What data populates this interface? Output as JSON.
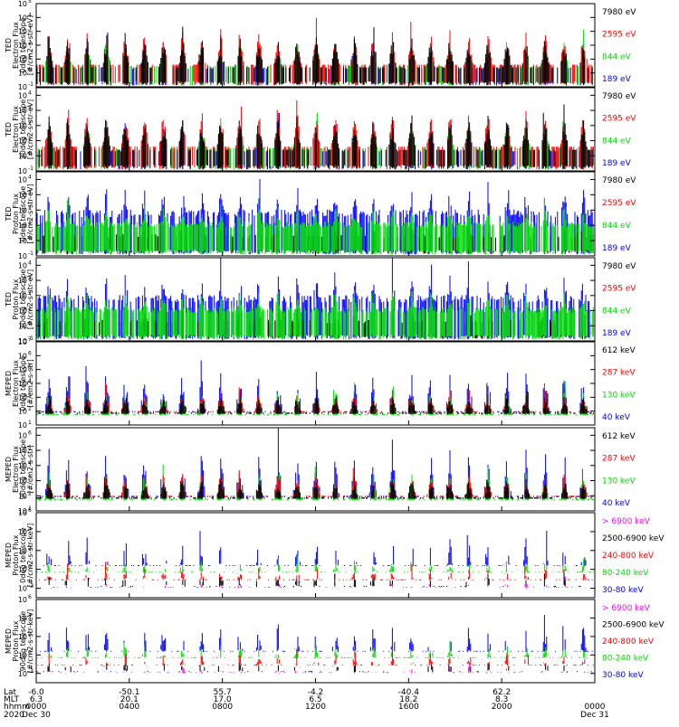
{
  "chart_data": {
    "type": "stacked-timeseries",
    "x_range_hours": [
      0,
      24
    ],
    "panels": [
      {
        "kind": "electron",
        "ylabel": [
          "TED",
          "Electron Flux",
          "0deg telescope",
          "[#/cm2-s-str-eV]"
        ],
        "ytick_exps": [
          -1,
          0,
          1,
          2,
          3,
          4,
          5
        ],
        "ylog_range": [
          -1,
          5
        ],
        "legend": [
          {
            "text": "7980 eV",
            "color": "#000000"
          },
          {
            "text": "2595 eV",
            "color": "#ff0000"
          },
          {
            "text": "844 eV",
            "color": "#00dd00"
          },
          {
            "text": "189 eV",
            "color": "#0000ff"
          }
        ]
      },
      {
        "kind": "electron",
        "ylabel": [
          "TED",
          "Electron Flux",
          "30deg telescope",
          "[#/cm2-s-str-eV]"
        ],
        "ytick_exps": [
          -1,
          0,
          1,
          2,
          3,
          4
        ],
        "ylog_range": [
          -1,
          4.5
        ],
        "legend": [
          {
            "text": "7980 eV",
            "color": "#000000"
          },
          {
            "text": "2595 eV",
            "color": "#ff0000"
          },
          {
            "text": "844 eV",
            "color": "#00dd00"
          },
          {
            "text": "189 eV",
            "color": "#0000ff"
          }
        ]
      },
      {
        "kind": "tedproton",
        "ylabel": [
          "TED",
          "Proton Flux",
          "0deg telescope",
          "[#/cm2-s-str-eV]"
        ],
        "ytick_exps": [
          -1,
          0,
          1,
          2,
          3,
          4
        ],
        "ylog_range": [
          -1,
          4.5
        ],
        "legend": [
          {
            "text": "7980 eV",
            "color": "#000000"
          },
          {
            "text": "2595 eV",
            "color": "#ff0000"
          },
          {
            "text": "844 eV",
            "color": "#00dd00"
          },
          {
            "text": "189 eV",
            "color": "#0000ff"
          }
        ]
      },
      {
        "kind": "tedproton",
        "ylabel": [
          "TED",
          "Proton Flux",
          "30deg telescope",
          "[#/cm2-s-str-eV]"
        ],
        "ytick_exps": [
          -1,
          0,
          1,
          2,
          3,
          4
        ],
        "ylog_range": [
          -1,
          4.5
        ],
        "legend": [
          {
            "text": "7980 eV",
            "color": "#000000"
          },
          {
            "text": "2595 eV",
            "color": "#ff0000"
          },
          {
            "text": "844 eV",
            "color": "#00dd00"
          },
          {
            "text": "189 eV",
            "color": "#0000ff"
          }
        ]
      },
      {
        "kind": "mepede",
        "ylabel": [
          "MEPED",
          "Electron Flux",
          "0deg telescope",
          "[#/cm2-s-str]"
        ],
        "ytick_exps": [
          1,
          2,
          3,
          4,
          5,
          6,
          7
        ],
        "ylog_range": [
          1,
          7
        ],
        "legend": [
          {
            "text": "612 keV",
            "color": "#000000"
          },
          {
            "text": "287 keV",
            "color": "#ff0000"
          },
          {
            "text": "130 keV",
            "color": "#00dd00"
          },
          {
            "text": "40 keV",
            "color": "#0000ff"
          }
        ]
      },
      {
        "kind": "mepede",
        "ylabel": [
          "MEPED",
          "Electron Flux",
          "90deg telescope",
          "[#/cm2-s-str]"
        ],
        "ytick_exps": [
          1,
          2,
          3,
          4,
          5,
          6
        ],
        "ylog_range": [
          1,
          6.5
        ],
        "legend": [
          {
            "text": "612 keV",
            "color": "#000000"
          },
          {
            "text": "287 keV",
            "color": "#ff0000"
          },
          {
            "text": "130 keV",
            "color": "#00dd00"
          },
          {
            "text": "40 keV",
            "color": "#0000ff"
          }
        ]
      },
      {
        "kind": "mepedp",
        "ylabel": [
          "MEPED",
          "Proton Flux",
          "0deg telescope",
          "[#/cm2-s-str-keV]"
        ],
        "ytick_exps": [
          -2,
          0,
          2,
          4,
          6
        ],
        "ylog_range": [
          -3,
          6
        ],
        "legend": [
          {
            "text": "> 6900 keV",
            "color": "#ff00ff"
          },
          {
            "text": "2500-6900 keV",
            "color": "#000000"
          },
          {
            "text": "240-800 keV",
            "color": "#ff0000"
          },
          {
            "text": "80-240 keV",
            "color": "#00dd00"
          },
          {
            "text": "30-80 keV",
            "color": "#0000ff"
          }
        ]
      },
      {
        "kind": "mepedp",
        "ylabel": [
          "MEPED",
          "Proton Flux",
          "90deg telescope",
          "[#/cm2-s-str-keV]"
        ],
        "ytick_exps": [
          -2,
          0,
          2,
          4,
          6
        ],
        "ylog_range": [
          -3,
          6
        ],
        "legend": [
          {
            "text": "> 6900 keV",
            "color": "#ff00ff"
          },
          {
            "text": "2500-6900 keV",
            "color": "#000000"
          },
          {
            "text": "240-800 keV",
            "color": "#ff0000"
          },
          {
            "text": "80-240 keV",
            "color": "#00dd00"
          },
          {
            "text": "30-80 keV",
            "color": "#0000ff"
          }
        ]
      }
    ],
    "x_axis": {
      "row_labels": [
        "Lat",
        "MLT",
        "hhmm",
        "2020"
      ],
      "ticks": [
        {
          "hour": 0,
          "lat": "-6.0",
          "mlt": "6.3",
          "hhmm": "0000",
          "date": "Dec 30"
        },
        {
          "hour": 4,
          "lat": "-50.1",
          "mlt": "20.1",
          "hhmm": "0400",
          "date": ""
        },
        {
          "hour": 8,
          "lat": "55.7",
          "mlt": "17.0",
          "hhmm": "0800",
          "date": ""
        },
        {
          "hour": 12,
          "lat": "-4.2",
          "mlt": "6.5",
          "hhmm": "1200",
          "date": ""
        },
        {
          "hour": 16,
          "lat": "-40.4",
          "mlt": "18.2",
          "hhmm": "1600",
          "date": ""
        },
        {
          "hour": 20,
          "lat": "62.2",
          "mlt": "8.3",
          "hhmm": "2000",
          "date": ""
        },
        {
          "hour": 24,
          "lat": "",
          "mlt": "",
          "hhmm": "0000",
          "date": "Dec 31"
        }
      ]
    },
    "series_colors": {
      "black": "#000000",
      "red": "#ff0000",
      "green": "#00dd00",
      "blue": "#0000ff",
      "magenta": "#ff00ff"
    }
  }
}
